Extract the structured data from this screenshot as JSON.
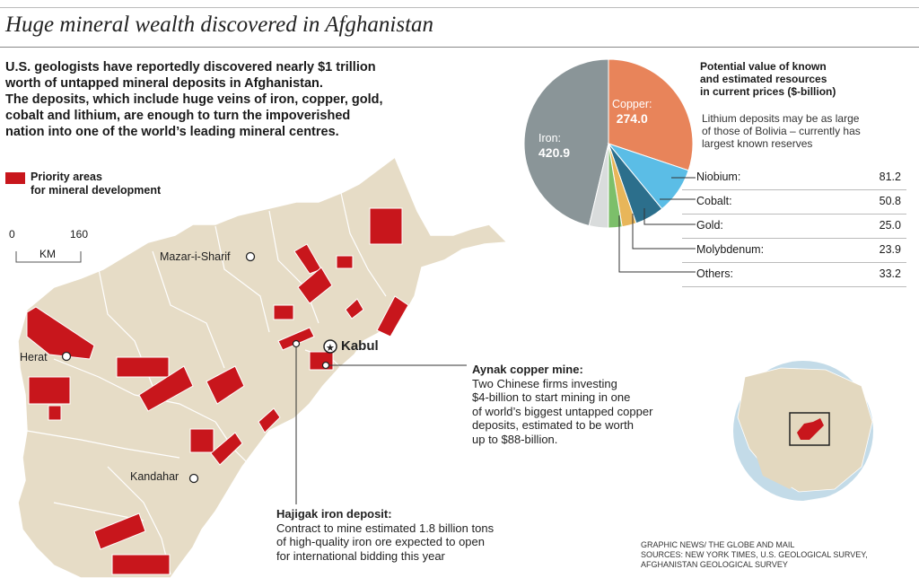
{
  "title": "Huge mineral wealth discovered in Afghanistan",
  "intro_lines": [
    "U.S. geologists have reportedly discovered nearly $1 trillion",
    "worth of untapped mineral deposits in Afghanistan.",
    "The deposits, which include huge veins of iron, copper, gold,",
    "cobalt and lithium, are enough to turn the impoverished",
    "nation into one of the world’s leading mineral centres."
  ],
  "legend": {
    "line1": "Priority areas",
    "line2": "for mineral development",
    "color": "#c8161c"
  },
  "scale": {
    "min": "0",
    "max": "160",
    "unit": "KM"
  },
  "cities": {
    "mazar": "Mazar-i-Sharif",
    "herat": "Herat",
    "kabul": "Kabul",
    "kandahar": "Kandahar"
  },
  "pie": {
    "title_lines": [
      "Potential value of known",
      "and estimated resources",
      "in current prices ($-billion)"
    ],
    "note_lines": [
      "Lithium deposits may be as large",
      "of those of Bolivia – currently has",
      "largest known reserves"
    ],
    "iron_label": "Iron:",
    "iron_value": "420.9",
    "copper_label": "Copper:",
    "copper_value": "274.0",
    "slices": [
      {
        "name": "Iron",
        "value": 420.9,
        "color": "#8a9598"
      },
      {
        "name": "Copper",
        "value": 274.0,
        "color": "#e8845a"
      },
      {
        "name": "Niobium",
        "value": 81.2,
        "color": "#5bbde6"
      },
      {
        "name": "Cobalt",
        "value": 50.8,
        "color": "#2c6f8c"
      },
      {
        "name": "Gold",
        "value": 25.0,
        "color": "#e8b65a"
      },
      {
        "name": "Molybdenum",
        "value": 23.9,
        "color": "#7cbf6a"
      },
      {
        "name": "Others",
        "value": 33.2,
        "color": "#d9dcdc"
      }
    ]
  },
  "table": [
    {
      "label": "Niobium:",
      "value": "81.2"
    },
    {
      "label": "Cobalt:",
      "value": "50.8"
    },
    {
      "label": "Gold:",
      "value": "25.0"
    },
    {
      "label": "Molybdenum:",
      "value": "23.9"
    },
    {
      "label": "Others:",
      "value": "33.2"
    }
  ],
  "aynak": {
    "title": "Aynak copper mine:",
    "lines": [
      "Two Chinese firms investing",
      "$4-billion to start mining in one",
      "of world’s biggest untapped copper",
      "deposits, estimated to be worth",
      "up to $88-billion."
    ]
  },
  "hajigak": {
    "title": "Hajigak iron deposit:",
    "lines": [
      "Contract to mine estimated 1.8 billion tons",
      "of high-quality iron ore expected to open",
      "for international bidding this year"
    ]
  },
  "credits_lines": [
    "GRAPHIC NEWS/ THE GLOBE AND MAIL",
    "SOURCES: NEW YORK TIMES, U.S. GEOLOGICAL SURVEY,",
    "AFGHANISTAN GEOLOGICAL SURVEY"
  ],
  "colors": {
    "land": "#e6dcc6",
    "border": "#ffffff",
    "deposit": "#c8161c"
  }
}
